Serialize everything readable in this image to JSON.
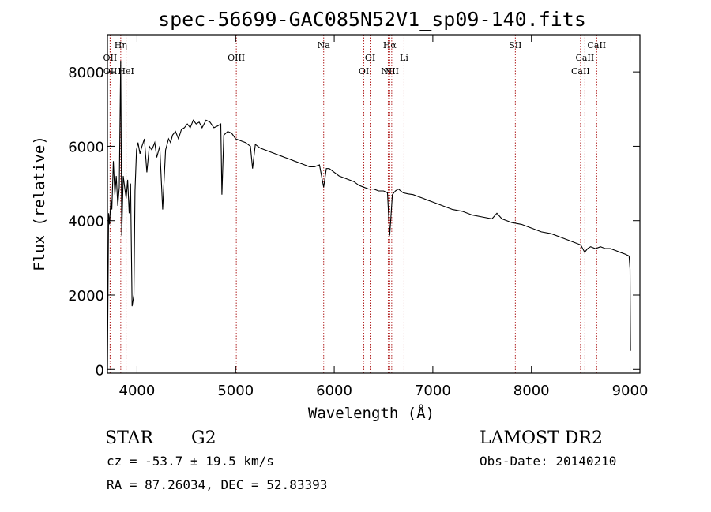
{
  "header": {
    "title": "spec-56699-GAC085N52V1_sp09-140.fits"
  },
  "footer": {
    "object_class": "STAR",
    "subclass": "G2",
    "survey": "LAMOST DR2",
    "redshift_text": "cz = -53.7 ± 19.5 km/s",
    "obs_date": "Obs-Date: 20140210",
    "coords": "RA =  87.26034, DEC =  52.83393"
  },
  "chart_data": {
    "type": "line",
    "title": "spec-56699-GAC085N52V1_sp09-140.fits",
    "xlabel": "Wavelength (Å)",
    "ylabel": "Flux (relative)",
    "xlim": [
      3700,
      9100
    ],
    "ylim": [
      -100,
      9000
    ],
    "x_ticks": [
      4000,
      5000,
      6000,
      7000,
      8000,
      9000
    ],
    "y_ticks": [
      0,
      2000,
      4000,
      6000,
      8000
    ],
    "grid": false,
    "line_color": "#000000",
    "marker_color": "#b22222",
    "spectral_lines": [
      {
        "label": "OII",
        "wavelength": 3727,
        "row": 1
      },
      {
        "label": "OII",
        "wavelength": 3729,
        "row": 2
      },
      {
        "label": "Hη",
        "wavelength": 3835,
        "row": 0
      },
      {
        "label": "HeI",
        "wavelength": 3889,
        "row": 2
      },
      {
        "label": "OIII",
        "wavelength": 5007,
        "row": 1
      },
      {
        "label": "Na",
        "wavelength": 5893,
        "row": 0
      },
      {
        "label": "OI",
        "wavelength": 6300,
        "row": 2
      },
      {
        "label": "OI",
        "wavelength": 6364,
        "row": 1
      },
      {
        "label": "NII",
        "wavelength": 6548,
        "row": 2
      },
      {
        "label": "Hα",
        "wavelength": 6563,
        "row": 0
      },
      {
        "label": "NII",
        "wavelength": 6583,
        "row": 2
      },
      {
        "label": "Li",
        "wavelength": 6708,
        "row": 1
      },
      {
        "label": "SII",
        "wavelength": 7837,
        "row": 0
      },
      {
        "label": "CaII",
        "wavelength": 8498,
        "row": 2
      },
      {
        "label": "CaII",
        "wavelength": 8542,
        "row": 1
      },
      {
        "label": "CaII",
        "wavelength": 8662,
        "row": 0
      }
    ],
    "series": [
      {
        "x": [
          3700,
          3712,
          3722,
          3735,
          3745,
          3760,
          3775,
          3790,
          3805,
          3820,
          3835,
          3845,
          3860,
          3875,
          3890,
          3905,
          3920,
          3935,
          3950,
          3968,
          3980,
          3995,
          4010,
          4030,
          4050,
          4075,
          4100,
          4125,
          4150,
          4180,
          4200,
          4230,
          4260,
          4290,
          4320,
          4340,
          4360,
          4390,
          4420,
          4450,
          4480,
          4510,
          4540,
          4570,
          4600,
          4630,
          4660,
          4700,
          4740,
          4780,
          4820,
          4850,
          4861,
          4880,
          4920,
          4960,
          5000,
          5050,
          5100,
          5150,
          5172,
          5200,
          5250,
          5300,
          5350,
          5400,
          5450,
          5500,
          5550,
          5600,
          5650,
          5700,
          5750,
          5800,
          5850,
          5893,
          5920,
          5950,
          6000,
          6050,
          6100,
          6150,
          6200,
          6250,
          6300,
          6350,
          6400,
          6450,
          6500,
          6540,
          6563,
          6590,
          6620,
          6650,
          6700,
          6750,
          6800,
          6850,
          6900,
          6950,
          7000,
          7100,
          7200,
          7300,
          7400,
          7500,
          7600,
          7650,
          7700,
          7800,
          7900,
          8000,
          8100,
          8200,
          8300,
          8400,
          8500,
          8540,
          8570,
          8600,
          8650,
          8700,
          8750,
          8800,
          8850,
          8900,
          8950,
          8990,
          9000,
          9005
        ],
        "y": [
          0,
          4200,
          3900,
          4600,
          4300,
          5600,
          4700,
          5200,
          4400,
          4900,
          8300,
          3600,
          5200,
          4900,
          4600,
          5100,
          4200,
          5000,
          1700,
          2000,
          4800,
          5900,
          6100,
          5800,
          6000,
          6200,
          5300,
          6000,
          5900,
          6100,
          5700,
          6000,
          4300,
          5900,
          6200,
          6100,
          6300,
          6400,
          6200,
          6450,
          6500,
          6600,
          6500,
          6700,
          6600,
          6650,
          6500,
          6700,
          6650,
          6500,
          6550,
          6600,
          4700,
          6300,
          6400,
          6350,
          6200,
          6150,
          6100,
          6000,
          5400,
          6050,
          5950,
          5900,
          5850,
          5800,
          5750,
          5700,
          5650,
          5600,
          5550,
          5500,
          5450,
          5450,
          5500,
          4900,
          5400,
          5400,
          5300,
          5200,
          5150,
          5100,
          5050,
          4950,
          4900,
          4850,
          4850,
          4800,
          4800,
          4750,
          3600,
          4700,
          4800,
          4850,
          4750,
          4720,
          4700,
          4650,
          4600,
          4550,
          4500,
          4400,
          4300,
          4250,
          4150,
          4100,
          4050,
          4200,
          4050,
          3950,
          3900,
          3800,
          3700,
          3650,
          3550,
          3450,
          3350,
          3150,
          3250,
          3300,
          3250,
          3300,
          3250,
          3250,
          3200,
          3150,
          3100,
          3050,
          2700,
          500
        ]
      }
    ]
  }
}
